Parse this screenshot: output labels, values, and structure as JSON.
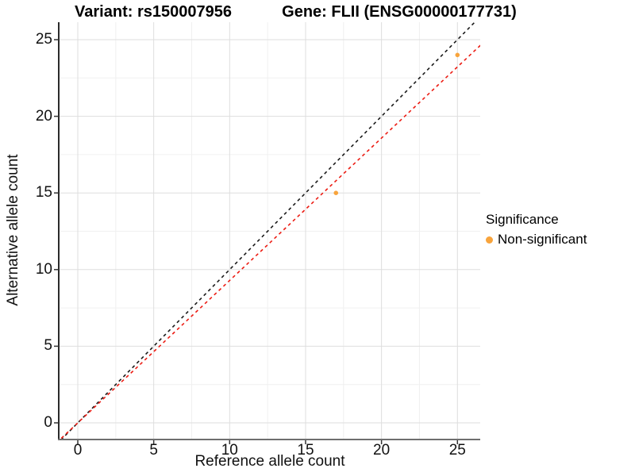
{
  "chart_data": {
    "type": "scatter",
    "title_left": "Variant: rs150007956",
    "title_right": "Gene: FLII (ENSG00000177731)",
    "xlabel": "Reference allele count",
    "ylabel": "Alternative allele count",
    "x_ticks": [
      0,
      5,
      10,
      15,
      20,
      25
    ],
    "y_ticks": [
      0,
      5,
      10,
      15,
      20,
      25
    ],
    "x_minor_ticks": [
      2.5,
      7.5,
      12.5,
      17.5,
      22.5
    ],
    "y_minor_ticks": [
      2.5,
      7.5,
      12.5,
      17.5,
      22.5
    ],
    "xlim": [
      -1.2,
      26.5
    ],
    "ylim": [
      -1.05,
      26.15
    ],
    "grid": true,
    "points": [
      {
        "x": 17,
        "y": 15,
        "series": "Non-significant",
        "color": "#F8A43C"
      },
      {
        "x": 25,
        "y": 24,
        "series": "Non-significant",
        "color": "#F8A43C"
      }
    ],
    "lines": [
      {
        "name": "identity-line",
        "slope": 1,
        "intercept": 0,
        "style": "dashed",
        "color": "#1A1A1A"
      },
      {
        "name": "allelic-ratio-line",
        "slope": 0.929,
        "intercept": 0,
        "style": "dashed",
        "color": "#EC1C13"
      }
    ],
    "legend": {
      "title": "Significance",
      "position": "right",
      "items": [
        {
          "label": "Non-significant",
          "color": "#F8A43C"
        }
      ]
    }
  },
  "colors": {
    "background": "#FFFFFF",
    "grid_major": "#DEDEDE",
    "grid_minor": "#F0F0F0",
    "axis_line_x": "#6E6E6E",
    "axis_line_y": "#2B2B2B",
    "tick_mark": "#333333",
    "text": "#000000"
  }
}
